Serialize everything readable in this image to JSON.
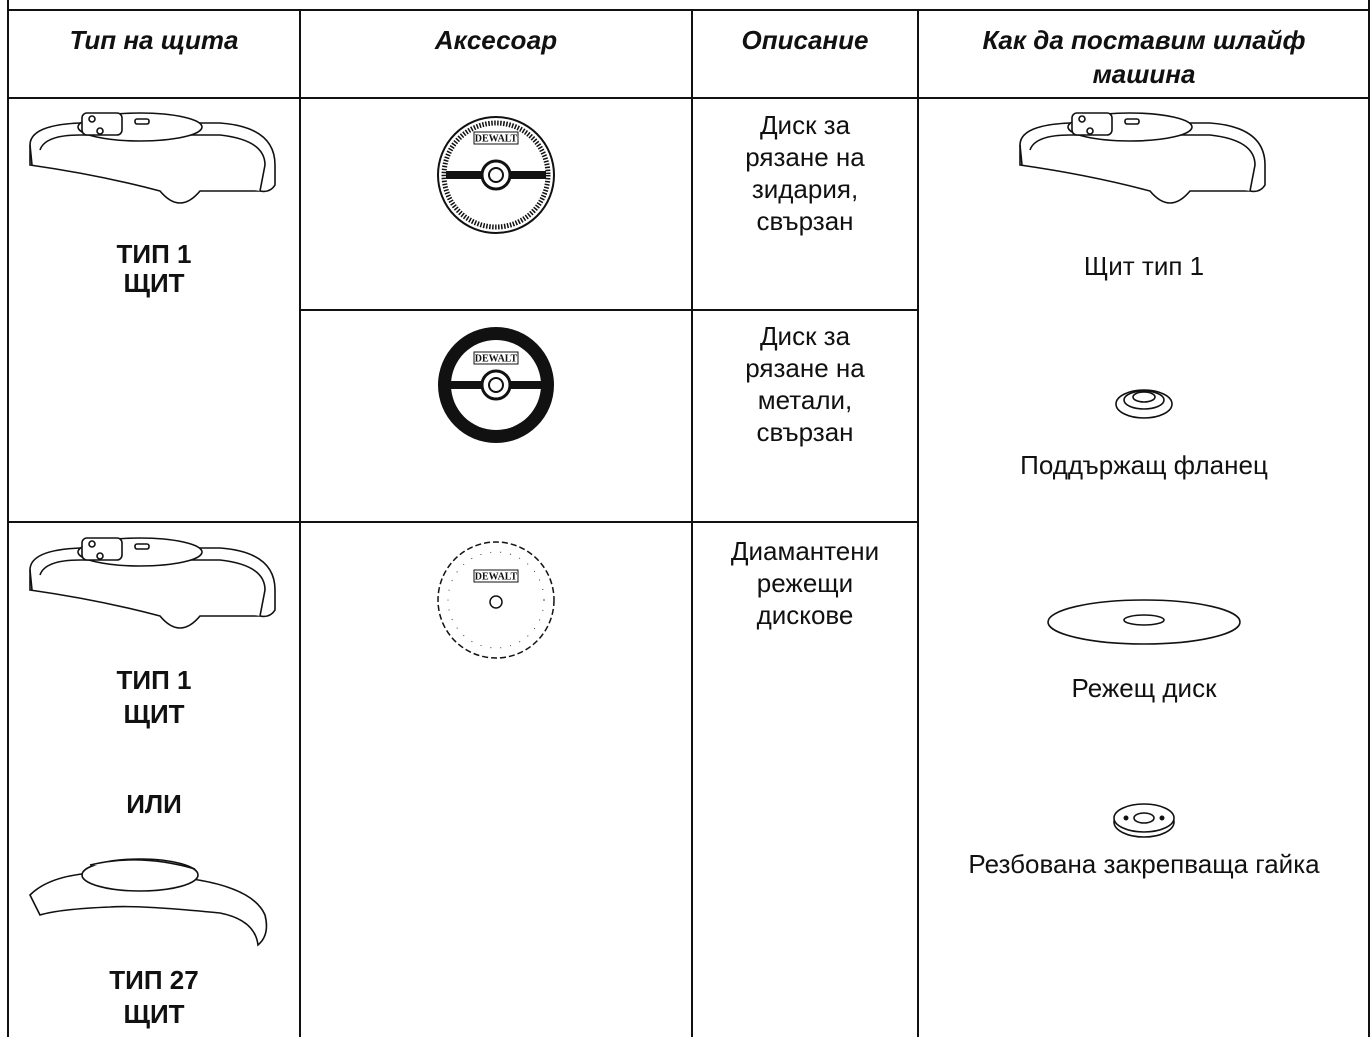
{
  "table": {
    "header": [
      "Тип на щита",
      "Аксесоар",
      "Описание",
      [
        "Как да поставим шлайф",
        "машина"
      ]
    ],
    "guards": [
      [
        "ТИП 1",
        "ЩИТ"
      ],
      [
        "ТИП 1",
        "ЩИТ",
        "ИЛИ",
        "ТИП 27",
        "ЩИТ"
      ]
    ],
    "accessories": [
      "DEWALT",
      "DEWALT",
      "DEWALT"
    ],
    "descriptions": [
      [
        "Диск за",
        "рязане на",
        "зидария,",
        "свързан"
      ],
      [
        "Диск за",
        "рязане на",
        "метали,",
        "свързан"
      ],
      [
        "Диамантени",
        "режещи",
        "дискове"
      ]
    ],
    "mounting": [
      "Щит тип 1",
      "Поддържащ фланец",
      "Режещ диск",
      "Резбована закрепваща гайка"
    ]
  }
}
